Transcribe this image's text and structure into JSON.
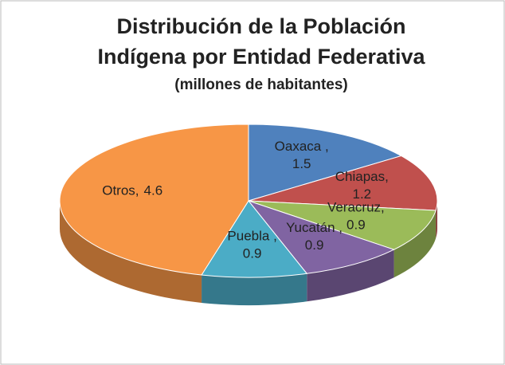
{
  "chart_data": {
    "type": "pie",
    "style": "3d",
    "title": [
      "Distribución de la Población",
      "Indígena por Entidad Federativa"
    ],
    "subtitle": "(millones de habitantes)",
    "categories": [
      "Oaxaca ,",
      "Chiapas,",
      "Veracruz,",
      "Yucatán ,",
      "Puebla ,",
      "Otros,"
    ],
    "values": [
      1.5,
      1.2,
      0.9,
      0.9,
      0.9,
      4.6
    ],
    "colors": [
      "#4f81bd",
      "#c0504d",
      "#9bbb59",
      "#8064a2",
      "#4bacc6",
      "#f79646"
    ]
  }
}
